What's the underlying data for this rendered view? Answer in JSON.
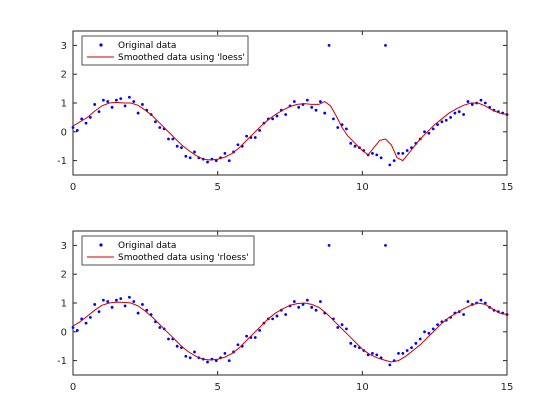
{
  "chart_data": [
    {
      "type": "scatter",
      "xlim": [
        0,
        15
      ],
      "ylim": [
        -1.5,
        3.5
      ],
      "xticks": [
        0,
        5,
        10,
        15
      ],
      "yticks": [
        -1,
        0,
        1,
        2,
        3
      ],
      "xtick_labels": [
        "0",
        "5",
        "10",
        "15"
      ],
      "ytick_labels": [
        "-1",
        "0",
        "1",
        "2",
        "3"
      ],
      "grid": false,
      "legend_location": "top-left",
      "series": [
        {
          "name": "Original data",
          "kind": "points",
          "color": "#0000ff",
          "x": [
            0.0,
            0.15,
            0.3,
            0.45,
            0.6,
            0.75,
            0.9,
            1.05,
            1.2,
            1.35,
            1.5,
            1.65,
            1.8,
            1.95,
            2.1,
            2.25,
            2.4,
            2.55,
            2.7,
            2.85,
            3.0,
            3.15,
            3.3,
            3.45,
            3.6,
            3.75,
            3.9,
            4.05,
            4.2,
            4.35,
            4.5,
            4.65,
            4.8,
            4.95,
            5.1,
            5.25,
            5.4,
            5.55,
            5.7,
            5.85,
            6.0,
            6.15,
            6.3,
            6.45,
            6.6,
            6.75,
            6.9,
            7.05,
            7.2,
            7.35,
            7.5,
            7.65,
            7.8,
            7.95,
            8.1,
            8.25,
            8.4,
            8.55,
            8.7,
            8.85,
            9.0,
            9.15,
            9.3,
            9.45,
            9.6,
            9.75,
            9.9,
            10.05,
            10.2,
            10.35,
            10.5,
            10.65,
            10.8,
            10.95,
            11.1,
            11.25,
            11.4,
            11.55,
            11.7,
            11.85,
            12.0,
            12.15,
            12.3,
            12.45,
            12.6,
            12.75,
            12.9,
            13.05,
            13.2,
            13.35,
            13.5,
            13.65,
            13.8,
            13.95,
            14.1,
            14.25,
            14.4,
            14.55,
            14.7,
            14.85,
            15.0
          ],
          "y": [
            0.15,
            0.05,
            0.45,
            0.3,
            0.5,
            0.95,
            0.7,
            1.1,
            1.05,
            0.85,
            1.1,
            1.15,
            0.9,
            1.2,
            1.05,
            0.65,
            0.95,
            0.75,
            0.6,
            0.35,
            0.15,
            0.1,
            -0.25,
            -0.25,
            -0.5,
            -0.55,
            -0.85,
            -0.9,
            -0.7,
            -0.9,
            -0.95,
            -1.05,
            -0.95,
            -1.0,
            -0.9,
            -0.75,
            -1.0,
            -0.7,
            -0.45,
            -0.5,
            -0.15,
            -0.2,
            -0.2,
            0.05,
            0.3,
            0.45,
            0.45,
            0.55,
            0.75,
            0.6,
            0.9,
            1.05,
            0.85,
            0.95,
            1.1,
            0.85,
            0.75,
            1.05,
            0.65,
            3.0,
            0.45,
            0.15,
            0.25,
            0.1,
            -0.4,
            -0.5,
            -0.55,
            -0.65,
            -0.8,
            -0.75,
            -0.8,
            -0.9,
            3.0,
            -1.15,
            -1.0,
            -0.75,
            -0.75,
            -0.65,
            -0.55,
            -0.4,
            -0.25,
            0.0,
            -0.05,
            0.1,
            0.25,
            0.35,
            0.4,
            0.5,
            0.65,
            0.7,
            0.6,
            1.05,
            0.95,
            1.0,
            1.1,
            1.0,
            0.85,
            0.75,
            0.7,
            0.65,
            0.6
          ]
        },
        {
          "name": "Smoothed data using 'loess'",
          "kind": "line",
          "color": "#cc0000",
          "x": [
            0,
            0.25,
            0.5,
            0.75,
            1.0,
            1.25,
            1.5,
            1.75,
            2.0,
            2.25,
            2.5,
            2.75,
            3.0,
            3.25,
            3.5,
            3.75,
            4.0,
            4.25,
            4.5,
            4.75,
            5.0,
            5.25,
            5.5,
            5.75,
            6.0,
            6.25,
            6.5,
            6.75,
            7.0,
            7.25,
            7.5,
            7.75,
            8.0,
            8.25,
            8.5,
            8.7,
            8.9,
            9.1,
            9.3,
            9.5,
            9.75,
            10.0,
            10.2,
            10.4,
            10.6,
            10.8,
            11.0,
            11.2,
            11.4,
            11.6,
            11.8,
            12.0,
            12.25,
            12.5,
            12.75,
            13.0,
            13.25,
            13.5,
            13.75,
            14.0,
            14.25,
            14.5,
            14.75,
            15.0
          ],
          "y": [
            0.2,
            0.35,
            0.5,
            0.72,
            0.9,
            1.0,
            1.02,
            1.0,
            1.0,
            0.92,
            0.75,
            0.55,
            0.3,
            0.05,
            -0.2,
            -0.45,
            -0.65,
            -0.82,
            -0.95,
            -0.98,
            -0.95,
            -0.88,
            -0.75,
            -0.55,
            -0.3,
            -0.05,
            0.2,
            0.42,
            0.6,
            0.75,
            0.88,
            0.95,
            0.98,
            0.95,
            0.95,
            1.05,
            0.9,
            0.55,
            0.15,
            -0.15,
            -0.4,
            -0.65,
            -0.8,
            -0.55,
            -0.3,
            -0.25,
            -0.45,
            -0.9,
            -1.0,
            -0.75,
            -0.5,
            -0.25,
            0.0,
            0.25,
            0.45,
            0.65,
            0.8,
            0.92,
            1.0,
            1.0,
            0.9,
            0.75,
            0.65,
            0.6
          ]
        }
      ]
    },
    {
      "type": "scatter",
      "xlim": [
        0,
        15
      ],
      "ylim": [
        -1.5,
        3.5
      ],
      "xticks": [
        0,
        5,
        10,
        15
      ],
      "yticks": [
        -1,
        0,
        1,
        2,
        3
      ],
      "xtick_labels": [
        "0",
        "5",
        "10",
        "15"
      ],
      "ytick_labels": [
        "-1",
        "0",
        "1",
        "2",
        "3"
      ],
      "grid": false,
      "legend_location": "top-left",
      "series": [
        {
          "name": "Original data",
          "kind": "points",
          "color": "#0000ff",
          "x": [
            0.0,
            0.15,
            0.3,
            0.45,
            0.6,
            0.75,
            0.9,
            1.05,
            1.2,
            1.35,
            1.5,
            1.65,
            1.8,
            1.95,
            2.1,
            2.25,
            2.4,
            2.55,
            2.7,
            2.85,
            3.0,
            3.15,
            3.3,
            3.45,
            3.6,
            3.75,
            3.9,
            4.05,
            4.2,
            4.35,
            4.5,
            4.65,
            4.8,
            4.95,
            5.1,
            5.25,
            5.4,
            5.55,
            5.7,
            5.85,
            6.0,
            6.15,
            6.3,
            6.45,
            6.6,
            6.75,
            6.9,
            7.05,
            7.2,
            7.35,
            7.5,
            7.65,
            7.8,
            7.95,
            8.1,
            8.25,
            8.4,
            8.55,
            8.7,
            8.85,
            9.0,
            9.15,
            9.3,
            9.45,
            9.6,
            9.75,
            9.9,
            10.05,
            10.2,
            10.35,
            10.5,
            10.65,
            10.8,
            10.95,
            11.1,
            11.25,
            11.4,
            11.55,
            11.7,
            11.85,
            12.0,
            12.15,
            12.3,
            12.45,
            12.6,
            12.75,
            12.9,
            13.05,
            13.2,
            13.35,
            13.5,
            13.65,
            13.8,
            13.95,
            14.1,
            14.25,
            14.4,
            14.55,
            14.7,
            14.85,
            15.0
          ],
          "y": [
            0.15,
            0.05,
            0.45,
            0.3,
            0.5,
            0.95,
            0.7,
            1.1,
            1.05,
            0.85,
            1.1,
            1.15,
            0.9,
            1.2,
            1.05,
            0.65,
            0.95,
            0.75,
            0.6,
            0.35,
            0.15,
            0.1,
            -0.25,
            -0.25,
            -0.5,
            -0.55,
            -0.85,
            -0.9,
            -0.7,
            -0.9,
            -0.95,
            -1.05,
            -0.95,
            -1.0,
            -0.9,
            -0.75,
            -1.0,
            -0.7,
            -0.45,
            -0.5,
            -0.15,
            -0.2,
            -0.2,
            0.05,
            0.3,
            0.45,
            0.45,
            0.55,
            0.75,
            0.6,
            0.9,
            1.05,
            0.85,
            0.95,
            1.1,
            0.85,
            0.75,
            1.05,
            0.65,
            3.0,
            0.45,
            0.15,
            0.25,
            0.1,
            -0.4,
            -0.5,
            -0.55,
            -0.65,
            -0.8,
            -0.75,
            -0.8,
            -0.9,
            3.0,
            -1.15,
            -1.0,
            -0.75,
            -0.75,
            -0.65,
            -0.55,
            -0.4,
            -0.25,
            0.0,
            -0.05,
            0.1,
            0.25,
            0.35,
            0.4,
            0.5,
            0.65,
            0.7,
            0.6,
            1.05,
            0.95,
            1.0,
            1.1,
            1.0,
            0.85,
            0.75,
            0.7,
            0.65,
            0.6
          ]
        },
        {
          "name": "Smoothed data using 'rloess'",
          "kind": "line",
          "color": "#cc0000",
          "x": [
            0,
            0.25,
            0.5,
            0.75,
            1.0,
            1.25,
            1.5,
            1.75,
            2.0,
            2.25,
            2.5,
            2.75,
            3.0,
            3.25,
            3.5,
            3.75,
            4.0,
            4.25,
            4.5,
            4.75,
            5.0,
            5.25,
            5.5,
            5.75,
            6.0,
            6.25,
            6.5,
            6.75,
            7.0,
            7.25,
            7.5,
            7.75,
            8.0,
            8.25,
            8.5,
            8.75,
            9.0,
            9.25,
            9.5,
            9.75,
            10.0,
            10.25,
            10.5,
            10.75,
            11.0,
            11.25,
            11.5,
            11.75,
            12.0,
            12.25,
            12.5,
            12.75,
            13.0,
            13.25,
            13.5,
            13.75,
            14.0,
            14.25,
            14.5,
            14.75,
            15.0
          ],
          "y": [
            0.2,
            0.35,
            0.55,
            0.75,
            0.92,
            1.0,
            1.03,
            1.02,
            1.0,
            0.9,
            0.72,
            0.5,
            0.25,
            0.0,
            -0.25,
            -0.5,
            -0.7,
            -0.85,
            -0.95,
            -0.98,
            -0.95,
            -0.88,
            -0.75,
            -0.55,
            -0.3,
            -0.05,
            0.2,
            0.45,
            0.65,
            0.8,
            0.92,
            0.98,
            1.0,
            0.95,
            0.85,
            0.65,
            0.4,
            0.15,
            -0.1,
            -0.35,
            -0.6,
            -0.78,
            -0.9,
            -0.98,
            -1.05,
            -1.0,
            -0.85,
            -0.65,
            -0.45,
            -0.2,
            0.05,
            0.3,
            0.5,
            0.65,
            0.8,
            0.92,
            1.0,
            0.95,
            0.8,
            0.65,
            0.6
          ]
        }
      ]
    }
  ]
}
